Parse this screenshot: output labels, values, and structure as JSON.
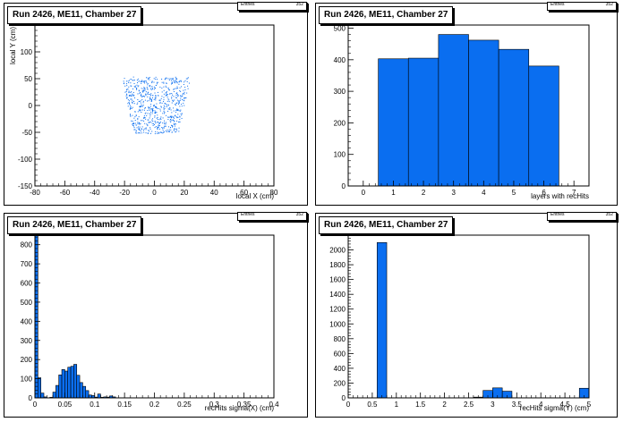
{
  "fill_color": "#0a6ef0",
  "stats_label": "Entries",
  "stats_value": "352",
  "chart_data": [
    {
      "id": "p1",
      "type": "scatter",
      "title": "Run 2426, ME11, Chamber 27",
      "xlabel": "local X (cm)",
      "ylabel": "local Y (cm)",
      "xlim": [
        -80,
        80
      ],
      "ylim": [
        -150,
        150
      ],
      "xticks": [
        -80,
        -60,
        -40,
        -20,
        0,
        20,
        40,
        60,
        80
      ],
      "yticks": [
        -150,
        -100,
        -50,
        0,
        50,
        100
      ],
      "region": {
        "x_top": [
          -22,
          24
        ],
        "x_bottom": [
          -14,
          16
        ],
        "y": [
          -52,
          54
        ]
      }
    },
    {
      "id": "p2",
      "type": "bar",
      "title": "Run 2426, ME11, Chamber 27",
      "xlabel": "layers with recHits",
      "ylabel": "",
      "xlim": [
        -0.5,
        7.5
      ],
      "ylim": [
        0,
        510
      ],
      "xticks": [
        0,
        1,
        2,
        3,
        4,
        5,
        6,
        7
      ],
      "yticks": [
        0,
        100,
        200,
        300,
        400,
        500
      ],
      "bin_width": 1,
      "bins": [
        {
          "x": 1,
          "y": 403
        },
        {
          "x": 2,
          "y": 405
        },
        {
          "x": 3,
          "y": 480
        },
        {
          "x": 4,
          "y": 462
        },
        {
          "x": 5,
          "y": 433
        },
        {
          "x": 6,
          "y": 380
        }
      ]
    },
    {
      "id": "p3",
      "type": "bar",
      "title": "Run 2426, ME11, Chamber 27",
      "xlabel": "recHits sigma(X) (cm)",
      "ylabel": "",
      "xlim": [
        0,
        0.4
      ],
      "ylim": [
        0,
        850
      ],
      "xticks": [
        0,
        0.05,
        0.1,
        0.15,
        0.2,
        0.25,
        0.3,
        0.35,
        0.4
      ],
      "yticks": [
        0,
        100,
        200,
        300,
        400,
        500,
        600,
        700,
        800
      ],
      "bin_width": 0.005,
      "bins": [
        {
          "x": 0.0025,
          "y": 850
        },
        {
          "x": 0.0075,
          "y": 105
        },
        {
          "x": 0.0125,
          "y": 25
        },
        {
          "x": 0.0175,
          "y": 5
        },
        {
          "x": 0.0225,
          "y": 0
        },
        {
          "x": 0.0275,
          "y": 3
        },
        {
          "x": 0.0325,
          "y": 30
        },
        {
          "x": 0.0375,
          "y": 65
        },
        {
          "x": 0.0425,
          "y": 120
        },
        {
          "x": 0.0475,
          "y": 148
        },
        {
          "x": 0.0525,
          "y": 140
        },
        {
          "x": 0.0575,
          "y": 160
        },
        {
          "x": 0.0625,
          "y": 165
        },
        {
          "x": 0.0675,
          "y": 175
        },
        {
          "x": 0.0725,
          "y": 118
        },
        {
          "x": 0.0775,
          "y": 80
        },
        {
          "x": 0.0825,
          "y": 60
        },
        {
          "x": 0.0875,
          "y": 38
        },
        {
          "x": 0.0925,
          "y": 15
        },
        {
          "x": 0.0975,
          "y": 12
        },
        {
          "x": 0.1025,
          "y": 4
        },
        {
          "x": 0.1075,
          "y": 20
        },
        {
          "x": 0.1125,
          "y": 3
        },
        {
          "x": 0.1175,
          "y": 5
        },
        {
          "x": 0.1225,
          "y": 4
        },
        {
          "x": 0.1275,
          "y": 10
        },
        {
          "x": 0.1325,
          "y": 5
        }
      ]
    },
    {
      "id": "p4",
      "type": "bar",
      "title": "Run 2426, ME11, Chamber 27",
      "xlabel": "recHits sigma(Y) (cm)",
      "ylabel": "",
      "xlim": [
        0,
        5
      ],
      "ylim": [
        0,
        2200
      ],
      "xticks": [
        0,
        0.5,
        1,
        1.5,
        2,
        2.5,
        3,
        3.5,
        4,
        4.5,
        5
      ],
      "yticks": [
        0,
        200,
        400,
        600,
        800,
        1000,
        1200,
        1400,
        1600,
        1800,
        2000
      ],
      "bin_width": 0.2,
      "bins": [
        {
          "x": 0.7,
          "y": 2100
        },
        {
          "x": 2.7,
          "y": 10
        },
        {
          "x": 2.9,
          "y": 100
        },
        {
          "x": 3.1,
          "y": 135
        },
        {
          "x": 3.3,
          "y": 90
        },
        {
          "x": 4.9,
          "y": 130
        }
      ]
    }
  ]
}
